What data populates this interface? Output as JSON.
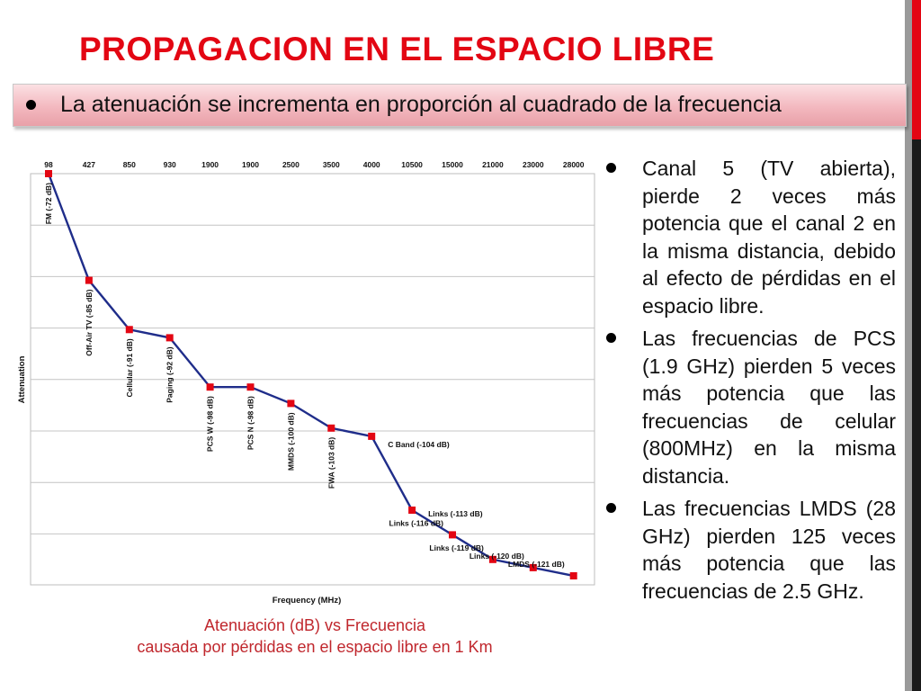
{
  "title": "PROPAGACION EN EL ESPACIO LIBRE",
  "banner_text": "La atenuación se incrementa en proporción al cuadrado de la frecuencia",
  "caption": {
    "line1": "Atenuación (dB) vs Frecuencia",
    "line2": "causada por pérdidas en el espacio libre en 1 Km"
  },
  "bullets": [
    "Canal 5 (TV abierta), pierde 2 veces más potencia que el canal 2 en la misma distancia, debido al efecto de pérdidas en el espacio libre.",
    "Las frecuencias de PCS (1.9 GHz) pierden 5 veces más potencia que las frecuencias de celular (800MHz) en la misma distancia.",
    "Las frecuencias LMDS (28 GHz) pierden 125 veces más potencia que las frecuencias  de 2.5 GHz."
  ],
  "colors": {
    "accent": "#e30613",
    "line": "#1f2d8a",
    "marker": "#e30613",
    "caption": "#c0272d"
  },
  "chart_data": {
    "type": "line",
    "xlabel": "Frequency (MHz)",
    "ylabel": "Attenuation",
    "top_labels": [
      "98",
      "427",
      "850",
      "930",
      "1900",
      "1900",
      "2500",
      "3500",
      "4000",
      "10500",
      "15000",
      "21000",
      "23000",
      "28000"
    ],
    "values": [
      -72,
      -85,
      -91,
      -92,
      -98,
      -98,
      -100,
      -103,
      -104,
      -113,
      -116,
      -119,
      -120,
      -121
    ],
    "point_labels": [
      {
        "index": 0,
        "text": "FM (-72 dB)"
      },
      {
        "index": 1,
        "text": "Off-Air TV (-85 dB)"
      },
      {
        "index": 2,
        "text": "Cellular (-91 dB)"
      },
      {
        "index": 3,
        "text": "Paging (-92 dB)"
      },
      {
        "index": 4,
        "text": "PCS W (-98 dB)"
      },
      {
        "index": 5,
        "text": "PCS N (-98 dB)"
      },
      {
        "index": 6,
        "text": "MMDS (-100 dB)"
      },
      {
        "index": 7,
        "text": "FWA (-103 dB)"
      },
      {
        "index": 8,
        "text": "C Band (-104 dB)"
      },
      {
        "index": 9,
        "text": "Links (-113 dB)"
      },
      {
        "index": 10,
        "text": "Links (-116 dB)"
      },
      {
        "index": 11,
        "text": "Links (-119 dB)"
      },
      {
        "index": 12,
        "text": "Links (-120 dB)"
      },
      {
        "index": 13,
        "text": "LMDS (-121 dB)"
      }
    ],
    "grid": true,
    "legend": "none"
  }
}
